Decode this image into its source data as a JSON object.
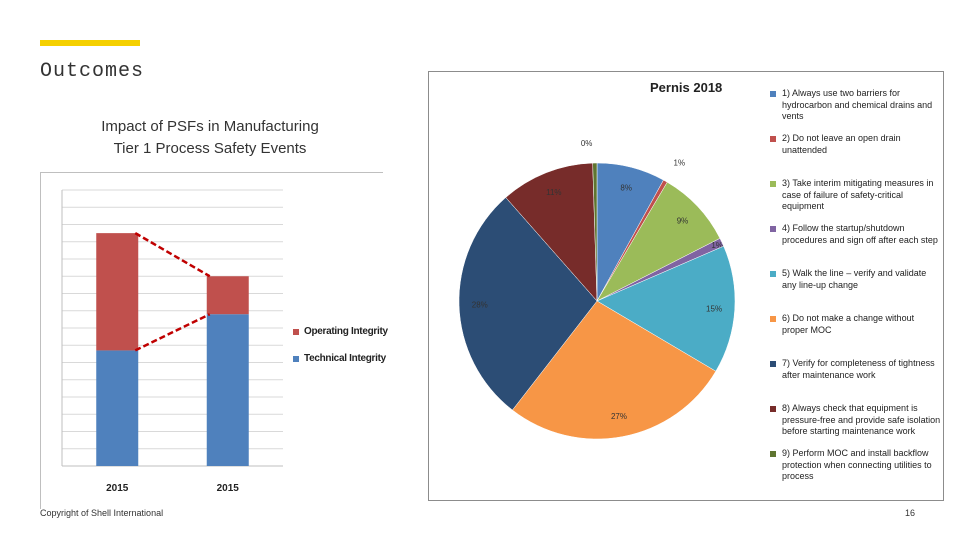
{
  "slide": {
    "title": "Outcomes",
    "accent_color": "#f5d000",
    "footer": "Copyright of Shell International",
    "page_number": "16"
  },
  "chart_data": [
    {
      "type": "bar",
      "stacked": true,
      "title_line1": "Impact of PSFs in Manufacturing",
      "title_line2": "Tier 1 Process Safety Events",
      "categories": [
        "2015",
        "2015"
      ],
      "series": [
        {
          "name": "Technical Integrity",
          "color": "#4f81bd",
          "values": [
            6.7,
            8.8
          ]
        },
        {
          "name": "Operating Integrity",
          "color": "#c0504d",
          "values": [
            6.8,
            2.2
          ]
        }
      ],
      "ylim": [
        0,
        16
      ],
      "grid": true,
      "legend_position": "right"
    },
    {
      "type": "pie",
      "title": "Pernis 2018",
      "slices": [
        {
          "label": "1) Always use two barriers for hydrocarbon and chemical drains and vents",
          "value": 8,
          "pct_label": "8%",
          "color": "#4f81bd"
        },
        {
          "label": "2) Do not leave an open drain unattended",
          "value": 0.5,
          "pct_label": "1%",
          "color": "#c0504d"
        },
        {
          "label": "3) Take interim mitigating measures in case of failure of safety-critical equipment",
          "value": 9,
          "pct_label": "9%",
          "color": "#9bbb59"
        },
        {
          "label": "4) Follow the startup/shutdown procedures and sign off after each step",
          "value": 1,
          "pct_label": "1%",
          "color": "#8064a2"
        },
        {
          "label": "5) Walk the line – verify and validate any line-up change",
          "value": 15,
          "pct_label": "15%",
          "color": "#4bacc6"
        },
        {
          "label": "6) Do not make a change without proper MOC",
          "value": 27,
          "pct_label": "27%",
          "color": "#f79646"
        },
        {
          "label": "7) Verify for completeness of tightness after maintenance work",
          "value": 28,
          "pct_label": "28%",
          "color": "#2c4d75"
        },
        {
          "label": "8) Always check that equipment is pressure-free and provide safe isolation before starting maintenance work",
          "value": 11,
          "pct_label": "11%",
          "color": "#772c2a"
        },
        {
          "label": "9) Perform MOC and install backflow protection when connecting utilities to process",
          "value": 0.5,
          "pct_label": "0%",
          "color": "#5f7530"
        }
      ]
    }
  ]
}
